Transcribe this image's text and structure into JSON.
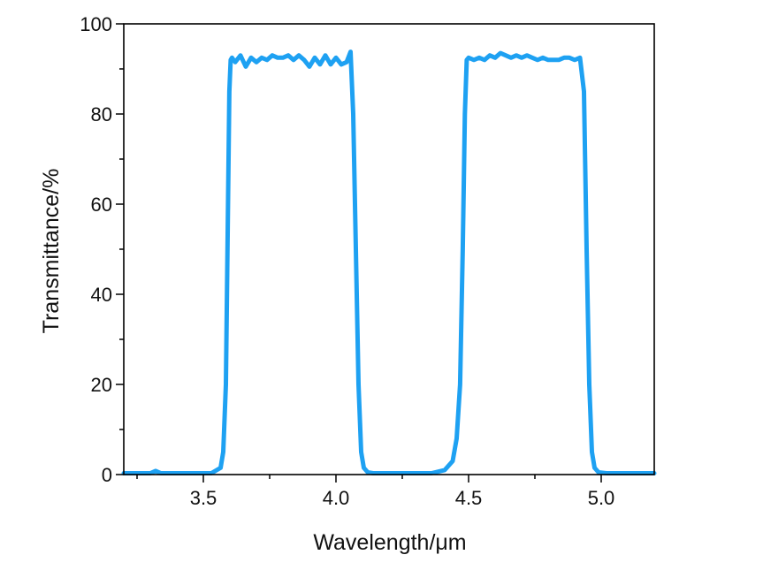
{
  "chart_data": {
    "type": "line",
    "title": "",
    "xlabel": "Wavelength/μm",
    "ylabel": "Transmittance/%",
    "xlim": [
      3.2,
      5.2
    ],
    "ylim": [
      0,
      100
    ],
    "xticks": [
      3.5,
      4.0,
      4.5,
      5.0
    ],
    "xtick_labels": [
      "3.5",
      "4.0",
      "4.5",
      "5.0"
    ],
    "yticks": [
      0,
      20,
      40,
      60,
      80,
      100
    ],
    "ytick_labels": [
      "0",
      "20",
      "40",
      "60",
      "80",
      "100"
    ],
    "grid": false,
    "legend": "none",
    "line_color": "#1ea1f2",
    "series": [
      {
        "x": [
          3.2,
          3.3,
          3.32,
          3.34,
          3.45,
          3.53,
          3.565,
          3.575,
          3.585,
          3.592,
          3.598,
          3.603,
          3.608,
          3.62,
          3.64,
          3.66,
          3.68,
          3.7,
          3.72,
          3.74,
          3.76,
          3.78,
          3.8,
          3.82,
          3.84,
          3.86,
          3.88,
          3.9,
          3.92,
          3.94,
          3.96,
          3.98,
          4.0,
          4.02,
          4.04,
          4.055,
          4.065,
          4.075,
          4.085,
          4.095,
          4.105,
          4.12,
          4.14,
          4.17,
          4.22,
          4.3,
          4.36,
          4.41,
          4.44,
          4.455,
          4.468,
          4.478,
          4.486,
          4.493,
          4.5,
          4.52,
          4.54,
          4.56,
          4.58,
          4.6,
          4.62,
          4.64,
          4.66,
          4.68,
          4.7,
          4.72,
          4.74,
          4.76,
          4.78,
          4.8,
          4.82,
          4.84,
          4.86,
          4.88,
          4.9,
          4.92,
          4.935,
          4.945,
          4.955,
          4.965,
          4.975,
          4.99,
          5.02,
          5.08,
          5.2
        ],
        "y": [
          0.3,
          0.3,
          0.8,
          0.3,
          0.3,
          0.3,
          1.5,
          5,
          20,
          55,
          85,
          92,
          92.5,
          91.5,
          93,
          90.5,
          92.5,
          91.5,
          92.5,
          92,
          93,
          92.5,
          92.5,
          93,
          92,
          93,
          92,
          90.5,
          92.5,
          91,
          93,
          91,
          92.5,
          91,
          91.5,
          93.8,
          80,
          50,
          20,
          5,
          1.5,
          0.5,
          0.3,
          0.3,
          0.3,
          0.3,
          0.3,
          1,
          3,
          8,
          20,
          50,
          80,
          92,
          92.5,
          92,
          92.5,
          92,
          93,
          92.5,
          93.5,
          93,
          92.5,
          93,
          92.5,
          93,
          92.5,
          92,
          92.5,
          92,
          92,
          92,
          92.5,
          92.5,
          92,
          92.5,
          85,
          50,
          20,
          5,
          1.5,
          0.5,
          0.3,
          0.3,
          0.3
        ]
      }
    ]
  }
}
